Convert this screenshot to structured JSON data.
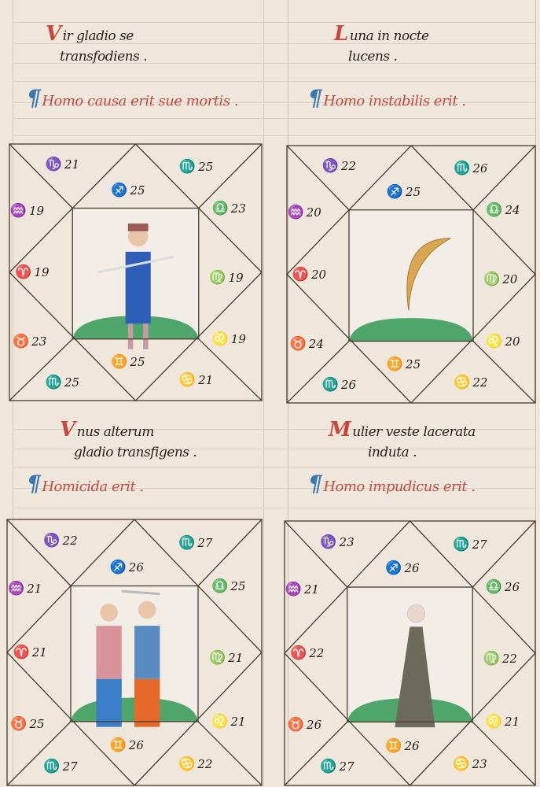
{
  "page": {
    "ink": "#2a221c",
    "red": "#c8382e",
    "blue": "#3a78b0",
    "parchment": "#efe7dc"
  },
  "charts": [
    {
      "title_initial": "V",
      "title_line1": "ir gladio se",
      "title_line2": "transfodiens .",
      "subtitle_initial": "H",
      "subtitle": "omo causa erit sue mortis .",
      "figure": "man-with-sword",
      "houses": [
        {
          "sign": "♑",
          "degree": "21"
        },
        {
          "sign": "♐",
          "degree": "25"
        },
        {
          "sign": "♏",
          "degree": "25"
        },
        {
          "sign": "♎",
          "degree": "23"
        },
        {
          "sign": "♍",
          "degree": "19"
        },
        {
          "sign": "♌",
          "degree": "19"
        },
        {
          "sign": "♋",
          "degree": "21"
        },
        {
          "sign": "♊",
          "degree": "25"
        },
        {
          "sign": "♏",
          "degree": "25"
        },
        {
          "sign": "♉",
          "degree": "23"
        },
        {
          "sign": "♈",
          "degree": "19"
        },
        {
          "sign": "♒",
          "degree": "19"
        }
      ]
    },
    {
      "title_initial": "L",
      "title_line1": "una in nocte",
      "title_line2": "lucens .",
      "subtitle_initial": "H",
      "subtitle": "omo instabilis erit .",
      "figure": "crescent-moon",
      "houses": [
        {
          "sign": "♑",
          "degree": "22"
        },
        {
          "sign": "♐",
          "degree": "25"
        },
        {
          "sign": "♏",
          "degree": "26"
        },
        {
          "sign": "♎",
          "degree": "24"
        },
        {
          "sign": "♍",
          "degree": "20"
        },
        {
          "sign": "♌",
          "degree": "20"
        },
        {
          "sign": "♋",
          "degree": "22"
        },
        {
          "sign": "♊",
          "degree": "25"
        },
        {
          "sign": "♏",
          "degree": "26"
        },
        {
          "sign": "♉",
          "degree": "24"
        },
        {
          "sign": "♈",
          "degree": "20"
        },
        {
          "sign": "♒",
          "degree": "20"
        }
      ]
    },
    {
      "title_initial": "V",
      "title_line1": "nus alterum",
      "title_line2": "gladio transfigens .",
      "subtitle_initial": "H",
      "subtitle": "omicida erit .",
      "figure": "two-men-fighting",
      "houses": [
        {
          "sign": "♑",
          "degree": "22"
        },
        {
          "sign": "♐",
          "degree": "26"
        },
        {
          "sign": "♏",
          "degree": "27"
        },
        {
          "sign": "♎",
          "degree": "25"
        },
        {
          "sign": "♍",
          "degree": "21"
        },
        {
          "sign": "♌",
          "degree": "21"
        },
        {
          "sign": "♋",
          "degree": "22"
        },
        {
          "sign": "♊",
          "degree": "26"
        },
        {
          "sign": "♏",
          "degree": "27"
        },
        {
          "sign": "♉",
          "degree": "25"
        },
        {
          "sign": "♈",
          "degree": "21"
        },
        {
          "sign": "♒",
          "degree": "21"
        }
      ]
    },
    {
      "title_initial": "M",
      "title_line1": "ulier veste lacerata",
      "title_line2": "induta .",
      "subtitle_initial": "H",
      "subtitle": "omo impudicus erit .",
      "figure": "woman-in-torn-dress",
      "houses": [
        {
          "sign": "♑",
          "degree": "23"
        },
        {
          "sign": "♐",
          "degree": "26"
        },
        {
          "sign": "♏",
          "degree": "27"
        },
        {
          "sign": "♎",
          "degree": "26"
        },
        {
          "sign": "♍",
          "degree": "22"
        },
        {
          "sign": "♌",
          "degree": "21"
        },
        {
          "sign": "♋",
          "degree": "23"
        },
        {
          "sign": "♊",
          "degree": "26"
        },
        {
          "sign": "♏",
          "degree": "27"
        },
        {
          "sign": "♉",
          "degree": "26"
        },
        {
          "sign": "♈",
          "degree": "22"
        },
        {
          "sign": "♒",
          "degree": "21"
        }
      ]
    }
  ]
}
